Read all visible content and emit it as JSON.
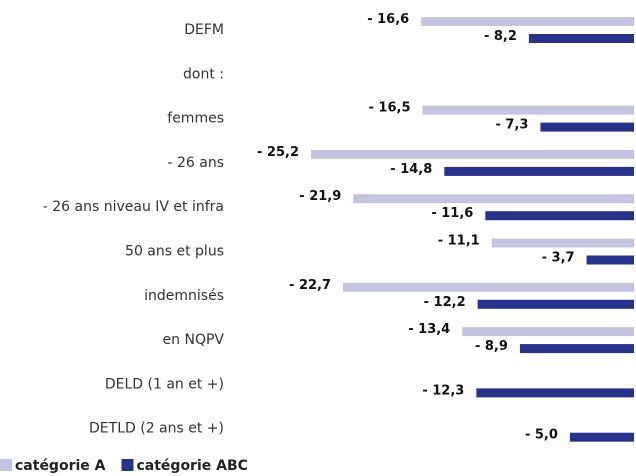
{
  "chart_data": {
    "type": "hbar",
    "categories": [
      "DEFM",
      "dont :",
      "femmes",
      "- 26 ans",
      "- 26 ans niveau IV et infra",
      "50 ans et plus",
      "indemnisés",
      "en NQPV",
      "DELD (1 an et +)",
      "DETLD (2 ans et +)"
    ],
    "series": [
      {
        "name": "catégorie A",
        "color": "#c4c4e0",
        "values": [
          -16.6,
          null,
          -16.5,
          -25.2,
          -21.9,
          -11.1,
          -22.7,
          -13.4,
          null,
          null
        ],
        "value_labels": [
          "- 16,6",
          null,
          "- 16,5",
          "- 25,2",
          "- 21,9",
          "- 11,1",
          "- 22,7",
          "- 13,4",
          null,
          null
        ]
      },
      {
        "name": "catégorie ABC",
        "color": "#27328a",
        "values": [
          -8.2,
          null,
          -7.3,
          -14.8,
          -11.6,
          -3.7,
          -12.2,
          -8.9,
          -12.3,
          -5.0
        ],
        "value_labels": [
          "- 8,2",
          null,
          "- 7,3",
          "- 14,8",
          "- 11,6",
          "- 3,7",
          "- 12,2",
          "- 8,9",
          "- 12,3",
          "- 5,0"
        ]
      }
    ]
  }
}
